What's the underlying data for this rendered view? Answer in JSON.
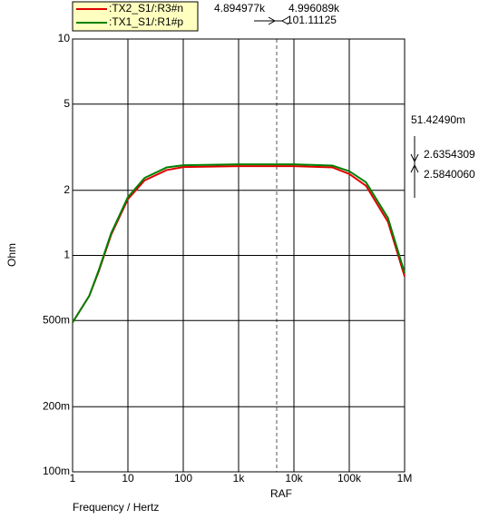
{
  "chart_data": {
    "type": "line",
    "log_x": true,
    "log_y": true,
    "grid": true,
    "ylabel": "Ohm",
    "xlabel": "Frequency / Hertz",
    "x": [
      1,
      2,
      3,
      5,
      10,
      20,
      50,
      100,
      1000,
      10000,
      50000,
      100000,
      200000,
      500000,
      1000000
    ],
    "series": [
      {
        "name": ":TX2_S1/:R3#n",
        "color": "#e00000",
        "values": [
          0.49,
          0.65,
          0.85,
          1.25,
          1.82,
          2.22,
          2.48,
          2.56,
          2.584,
          2.584,
          2.55,
          2.38,
          2.1,
          1.43,
          0.8
        ]
      },
      {
        "name": ":TX1_S1/:R1#p",
        "color": "#008000",
        "values": [
          0.49,
          0.65,
          0.86,
          1.27,
          1.86,
          2.28,
          2.55,
          2.61,
          2.635,
          2.635,
          2.6,
          2.45,
          2.18,
          1.49,
          0.83
        ]
      }
    ],
    "xlim": [
      1,
      1000000
    ],
    "xticks": [
      1,
      10,
      100,
      {
        "value": 1000,
        "label": "1k"
      },
      {
        "value": 10000,
        "label": "10k"
      },
      {
        "value": 100000,
        "label": "100k"
      },
      {
        "value": 1000000,
        "label": "1M"
      }
    ],
    "ylim": [
      0.1,
      10
    ],
    "yticks": [
      {
        "value": 0.1,
        "label": "100m"
      },
      {
        "value": 0.2,
        "label": "200m"
      },
      {
        "value": 0.5,
        "label": "500m"
      },
      1,
      2,
      5,
      10
    ],
    "cursor_a": "4.894977k",
    "cursor_b": "4.996089k",
    "cursor_diff": "101.11125",
    "y_diff": "51.42490m",
    "y_a": "2.6354309",
    "y_b": "2.5840060",
    "cursor_label": "RAF"
  }
}
